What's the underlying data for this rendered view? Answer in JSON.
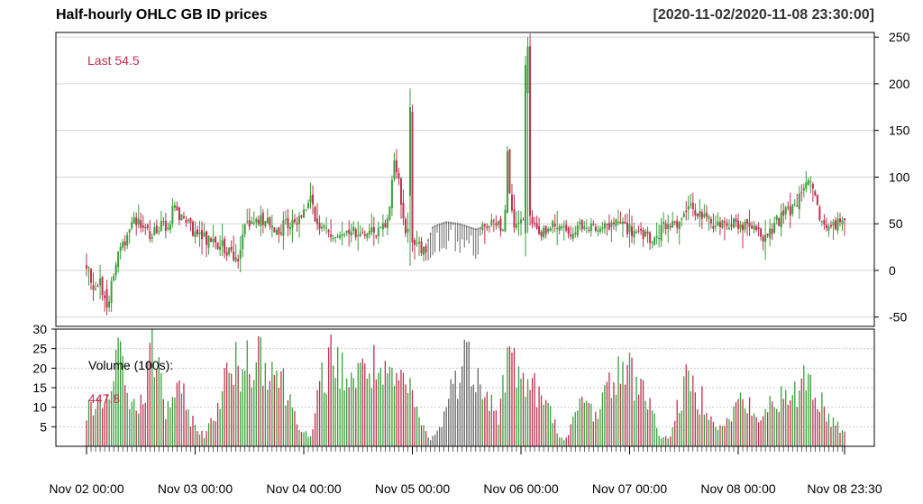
{
  "header": {
    "title": "Half-hourly OHLC GB ID prices",
    "date_range": "[2020-11-02/2020-11-08 23:30:00]"
  },
  "colors": {
    "up": "#3a9e3a",
    "down": "#c0304f",
    "neutral": "#666666",
    "grid": "#d3d3d3",
    "last_label": "#c0304f"
  },
  "chart_data": [
    {
      "type": "candlestick",
      "title": "Half-hourly OHLC GB ID prices",
      "ylim": [
        -60,
        255
      ],
      "y_ticks": [
        -50,
        0,
        50,
        100,
        150,
        200,
        250
      ],
      "y_axis_side": "right",
      "grid": true,
      "annotation": "Last 54.5",
      "price_anchors": [
        [
          0,
          5
        ],
        [
          3,
          -15
        ],
        [
          6,
          -10
        ],
        [
          8,
          -25
        ],
        [
          10,
          -35
        ],
        [
          12,
          -10
        ],
        [
          15,
          20
        ],
        [
          18,
          35
        ],
        [
          20,
          48
        ],
        [
          22,
          58
        ],
        [
          26,
          42
        ],
        [
          30,
          38
        ],
        [
          34,
          45
        ],
        [
          36,
          52
        ],
        [
          38,
          40
        ],
        [
          40,
          82
        ],
        [
          42,
          60
        ],
        [
          46,
          55
        ],
        [
          50,
          40
        ],
        [
          54,
          35
        ],
        [
          58,
          30
        ],
        [
          62,
          28
        ],
        [
          66,
          20
        ],
        [
          70,
          15
        ],
        [
          73,
          45
        ],
        [
          76,
          52
        ],
        [
          80,
          55
        ],
        [
          85,
          48
        ],
        [
          88,
          42
        ],
        [
          92,
          50
        ],
        [
          96,
          52
        ],
        [
          100,
          60
        ],
        [
          102,
          78
        ],
        [
          104,
          72
        ],
        [
          106,
          55
        ],
        [
          110,
          40
        ],
        [
          115,
          38
        ],
        [
          120,
          42
        ],
        [
          125,
          40
        ],
        [
          130,
          45
        ],
        [
          134,
          40
        ],
        [
          138,
          50
        ],
        [
          140,
          70
        ],
        [
          142,
          120
        ],
        [
          144,
          100
        ],
        [
          146,
          60
        ],
        [
          148,
          40
        ],
        [
          152,
          30
        ],
        [
          156,
          20
        ],
        [
          160,
          45
        ],
        [
          166,
          50
        ],
        [
          172,
          48
        ],
        [
          180,
          42
        ],
        [
          186,
          48
        ],
        [
          190,
          50
        ],
        [
          193,
          38
        ],
        [
          194,
          150
        ],
        [
          195,
          100
        ],
        [
          197,
          45
        ],
        [
          200,
          48
        ],
        [
          205,
          52
        ],
        [
          210,
          40
        ],
        [
          216,
          48
        ],
        [
          222,
          42
        ],
        [
          228,
          45
        ],
        [
          232,
          42
        ],
        [
          236,
          50
        ],
        [
          240,
          45
        ],
        [
          246,
          52
        ],
        [
          252,
          40
        ],
        [
          258,
          35
        ],
        [
          262,
          30
        ],
        [
          266,
          45
        ],
        [
          270,
          50
        ],
        [
          275,
          55
        ],
        [
          280,
          68
        ],
        [
          283,
          60
        ],
        [
          286,
          55
        ],
        [
          290,
          48
        ],
        [
          296,
          52
        ],
        [
          300,
          50
        ],
        [
          306,
          45
        ],
        [
          310,
          40
        ],
        [
          314,
          35
        ],
        [
          318,
          50
        ],
        [
          322,
          60
        ],
        [
          326,
          65
        ],
        [
          330,
          80
        ],
        [
          333,
          100
        ],
        [
          335,
          85
        ],
        [
          338,
          60
        ],
        [
          342,
          45
        ],
        [
          346,
          50
        ],
        [
          350,
          54.5
        ]
      ],
      "key_bars": [
        {
          "index": 143,
          "open": 80,
          "high": 195,
          "low": 5,
          "close": 175
        },
        {
          "index": 144,
          "open": 170,
          "high": 178,
          "low": 20,
          "close": 30
        },
        {
          "index": 194,
          "open": 40,
          "high": 230,
          "low": 15,
          "close": 220
        },
        {
          "index": 195,
          "open": 190,
          "high": 250,
          "low": 40,
          "close": 240
        },
        {
          "index": 9,
          "open": -20,
          "high": -10,
          "low": -48,
          "close": -40
        }
      ]
    },
    {
      "type": "bar",
      "title": "Volume (100s):",
      "annotation": "447.8",
      "ylim": [
        0,
        30
      ],
      "y_ticks": [
        5,
        10,
        15,
        20,
        25,
        30
      ],
      "y_axis_side": "left",
      "grid": true,
      "volume_anchors": [
        [
          0,
          10
        ],
        [
          6,
          12
        ],
        [
          12,
          17
        ],
        [
          16,
          30
        ],
        [
          20,
          13
        ],
        [
          26,
          12
        ],
        [
          30,
          28
        ],
        [
          33,
          27
        ],
        [
          36,
          10
        ],
        [
          40,
          16
        ],
        [
          45,
          14
        ],
        [
          50,
          6
        ],
        [
          55,
          3
        ],
        [
          60,
          12
        ],
        [
          65,
          21
        ],
        [
          70,
          24
        ],
        [
          75,
          26
        ],
        [
          80,
          29
        ],
        [
          85,
          25
        ],
        [
          90,
          20
        ],
        [
          95,
          12
        ],
        [
          100,
          5
        ],
        [
          104,
          2
        ],
        [
          108,
          19
        ],
        [
          112,
          26
        ],
        [
          116,
          24
        ],
        [
          120,
          22
        ],
        [
          125,
          20
        ],
        [
          130,
          25
        ],
        [
          135,
          22
        ],
        [
          140,
          18
        ],
        [
          145,
          20
        ],
        [
          150,
          15
        ],
        [
          154,
          8
        ],
        [
          158,
          2
        ],
        [
          162,
          4
        ],
        [
          166,
          12
        ],
        [
          170,
          20
        ],
        [
          174,
          26
        ],
        [
          178,
          25
        ],
        [
          182,
          22
        ],
        [
          186,
          15
        ],
        [
          190,
          8
        ],
        [
          194,
          26
        ],
        [
          198,
          24
        ],
        [
          202,
          20
        ],
        [
          206,
          18
        ],
        [
          210,
          14
        ],
        [
          214,
          10
        ],
        [
          218,
          4
        ],
        [
          222,
          2
        ],
        [
          226,
          10
        ],
        [
          230,
          14
        ],
        [
          234,
          10
        ],
        [
          238,
          14
        ],
        [
          242,
          18
        ],
        [
          246,
          24
        ],
        [
          250,
          22
        ],
        [
          254,
          20
        ],
        [
          258,
          18
        ],
        [
          262,
          8
        ],
        [
          266,
          2
        ],
        [
          270,
          4
        ],
        [
          274,
          14
        ],
        [
          278,
          20
        ],
        [
          282,
          15
        ],
        [
          286,
          14
        ],
        [
          290,
          8
        ],
        [
          294,
          5
        ],
        [
          298,
          10
        ],
        [
          302,
          14
        ],
        [
          306,
          12
        ],
        [
          310,
          6
        ],
        [
          314,
          12
        ],
        [
          318,
          15
        ],
        [
          322,
          14
        ],
        [
          326,
          12
        ],
        [
          330,
          22
        ],
        [
          334,
          20
        ],
        [
          338,
          15
        ],
        [
          342,
          9
        ],
        [
          346,
          7
        ],
        [
          350,
          5
        ]
      ]
    }
  ],
  "x_axis": {
    "tick_labels": [
      "Nov 02 00:00",
      "Nov 03 00:00",
      "Nov 04 00:00",
      "Nov 05 00:00",
      "Nov 06 00:00",
      "Nov 07 00:00",
      "Nov 08 00:00",
      "Nov 08 23:30"
    ]
  },
  "overlay": {
    "last_label": "Last 54.5",
    "volume_label": "Volume (100s):",
    "volume_value": "447.8"
  }
}
